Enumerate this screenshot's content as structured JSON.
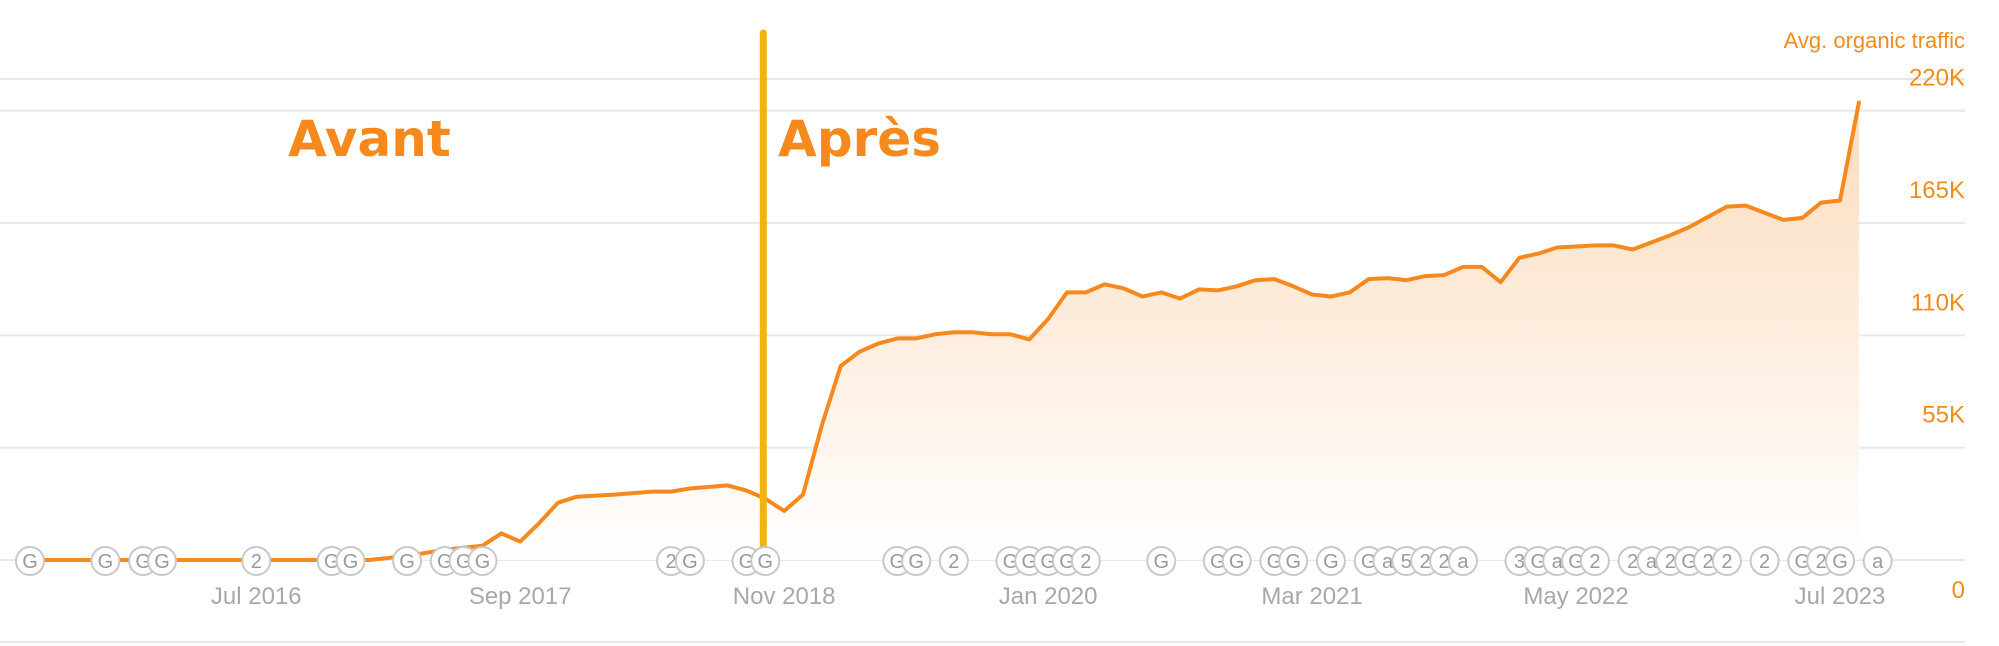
{
  "chart_data": {
    "type": "area",
    "series_title": "Avg. organic traffic",
    "x_tick_labels": [
      "Jul 2016",
      "Sep 2017",
      "Nov 2018",
      "Jan 2020",
      "Mar 2021",
      "May 2022",
      "Jul 2023"
    ],
    "y_tick_labels": [
      "0",
      "55K",
      "110K",
      "165K",
      "220K"
    ],
    "ylim": [
      0,
      235000
    ],
    "xlim": [
      "2015-07",
      "2023-07"
    ],
    "grid": true,
    "legend": "none",
    "colors": {
      "line": "#f5891e",
      "fill_top": "#fbd9b8",
      "fill_bottom": "#ffffff",
      "divider": "#f2b311",
      "axis_text": "#a8a8a8",
      "value_text": "#f08c1a"
    },
    "annotations": [
      {
        "text": "Avant",
        "x": "2017-01"
      },
      {
        "text": "Après",
        "x": "2019-03"
      }
    ],
    "divider_x": "2018-10",
    "series": [
      {
        "name": "",
        "points": [
          [
            "2015-07",
            0
          ],
          [
            "2015-10",
            0
          ],
          [
            "2016-01",
            0
          ],
          [
            "2016-04",
            0
          ],
          [
            "2016-07",
            0
          ],
          [
            "2016-10",
            0
          ],
          [
            "2017-01",
            0
          ],
          [
            "2017-03",
            2000
          ],
          [
            "2017-05",
            5000
          ],
          [
            "2017-07",
            7000
          ],
          [
            "2017-08",
            13000
          ],
          [
            "2017-09",
            9000
          ],
          [
            "2017-10",
            18000
          ],
          [
            "2017-11",
            28000
          ],
          [
            "2017-12",
            31000
          ],
          [
            "2018-02",
            32000
          ],
          [
            "2018-04",
            33500
          ],
          [
            "2018-05",
            33500
          ],
          [
            "2018-06",
            35000
          ],
          [
            "2018-08",
            36500
          ],
          [
            "2018-09",
            34000
          ],
          [
            "2018-10",
            30000
          ],
          [
            "2018-11",
            24000
          ],
          [
            "2018-12",
            32000
          ],
          [
            "2019-01",
            66000
          ],
          [
            "2019-02",
            95000
          ],
          [
            "2019-03",
            102000
          ],
          [
            "2019-04",
            106000
          ],
          [
            "2019-05",
            108500
          ],
          [
            "2019-06",
            108500
          ],
          [
            "2019-07",
            110500
          ],
          [
            "2019-08",
            111500
          ],
          [
            "2019-09",
            111500
          ],
          [
            "2019-10",
            110500
          ],
          [
            "2019-11",
            110500
          ],
          [
            "2019-12",
            108000
          ],
          [
            "2020-01",
            118000
          ],
          [
            "2020-02",
            131000
          ],
          [
            "2020-03",
            131000
          ],
          [
            "2020-04",
            135000
          ],
          [
            "2020-05",
            133000
          ],
          [
            "2020-06",
            129000
          ],
          [
            "2020-07",
            131000
          ],
          [
            "2020-08",
            128000
          ],
          [
            "2020-09",
            132500
          ],
          [
            "2020-10",
            132000
          ],
          [
            "2020-11",
            134000
          ],
          [
            "2020-12",
            137000
          ],
          [
            "2021-01",
            137500
          ],
          [
            "2021-02",
            134000
          ],
          [
            "2021-03",
            130000
          ],
          [
            "2021-04",
            129000
          ],
          [
            "2021-05",
            131000
          ],
          [
            "2021-06",
            137500
          ],
          [
            "2021-07",
            138000
          ],
          [
            "2021-08",
            137000
          ],
          [
            "2021-09",
            139000
          ],
          [
            "2021-10",
            139500
          ],
          [
            "2021-11",
            143500
          ],
          [
            "2021-12",
            143500
          ],
          [
            "2022-01",
            136000
          ],
          [
            "2022-02",
            148000
          ],
          [
            "2022-03",
            150000
          ],
          [
            "2022-04",
            153000
          ],
          [
            "2022-05",
            153500
          ],
          [
            "2022-06",
            154000
          ],
          [
            "2022-07",
            154000
          ],
          [
            "2022-08",
            152000
          ],
          [
            "2022-09",
            155500
          ],
          [
            "2022-10",
            159000
          ],
          [
            "2022-11",
            163000
          ],
          [
            "2022-12",
            168000
          ],
          [
            "2023-01",
            173000
          ],
          [
            "2023-02",
            173500
          ],
          [
            "2023-03",
            170000
          ],
          [
            "2023-04",
            166500
          ],
          [
            "2023-05",
            167500
          ],
          [
            "2023-06",
            175000
          ],
          [
            "2023-07",
            176000
          ],
          [
            "2023-08",
            224000
          ]
        ]
      }
    ],
    "markers": [
      {
        "label": "G",
        "x": "2015-07"
      },
      {
        "label": "G",
        "x": "2015-11"
      },
      {
        "label": "G",
        "x": "2016-01"
      },
      {
        "label": "G",
        "x": "2016-02"
      },
      {
        "label": "2",
        "x": "2016-07"
      },
      {
        "label": "G",
        "x": "2016-11"
      },
      {
        "label": "G",
        "x": "2016-12"
      },
      {
        "label": "G",
        "x": "2017-03"
      },
      {
        "label": "G",
        "x": "2017-05"
      },
      {
        "label": "G",
        "x": "2017-06"
      },
      {
        "label": "G",
        "x": "2017-07"
      },
      {
        "label": "2",
        "x": "2018-05"
      },
      {
        "label": "G",
        "x": "2018-06"
      },
      {
        "label": "G",
        "x": "2018-09"
      },
      {
        "label": "G",
        "x": "2018-10"
      },
      {
        "label": "G",
        "x": "2019-05"
      },
      {
        "label": "G",
        "x": "2019-06"
      },
      {
        "label": "2",
        "x": "2019-08"
      },
      {
        "label": "G",
        "x": "2019-11"
      },
      {
        "label": "G",
        "x": "2019-12"
      },
      {
        "label": "G",
        "x": "2020-01"
      },
      {
        "label": "G",
        "x": "2020-02"
      },
      {
        "label": "2",
        "x": "2020-03"
      },
      {
        "label": "G",
        "x": "2020-07"
      },
      {
        "label": "G",
        "x": "2020-10"
      },
      {
        "label": "G",
        "x": "2020-11"
      },
      {
        "label": "G",
        "x": "2021-01"
      },
      {
        "label": "G",
        "x": "2021-02"
      },
      {
        "label": "G",
        "x": "2021-04"
      },
      {
        "label": "G",
        "x": "2021-06"
      },
      {
        "label": "a",
        "x": "2021-07"
      },
      {
        "label": "5",
        "x": "2021-08"
      },
      {
        "label": "2",
        "x": "2021-09"
      },
      {
        "label": "2",
        "x": "2021-10"
      },
      {
        "label": "a",
        "x": "2021-11"
      },
      {
        "label": "3",
        "x": "2022-02"
      },
      {
        "label": "G",
        "x": "2022-03"
      },
      {
        "label": "a",
        "x": "2022-04"
      },
      {
        "label": "G",
        "x": "2022-05"
      },
      {
        "label": "2",
        "x": "2022-06"
      },
      {
        "label": "2",
        "x": "2022-08"
      },
      {
        "label": "a",
        "x": "2022-09"
      },
      {
        "label": "2",
        "x": "2022-10"
      },
      {
        "label": "G",
        "x": "2022-11"
      },
      {
        "label": "2",
        "x": "2022-12"
      },
      {
        "label": "2",
        "x": "2023-01"
      },
      {
        "label": "2",
        "x": "2023-03"
      },
      {
        "label": "G",
        "x": "2023-05"
      },
      {
        "label": "2",
        "x": "2023-06"
      },
      {
        "label": "G",
        "x": "2023-07"
      },
      {
        "label": "a",
        "x": "2023-09"
      }
    ]
  }
}
